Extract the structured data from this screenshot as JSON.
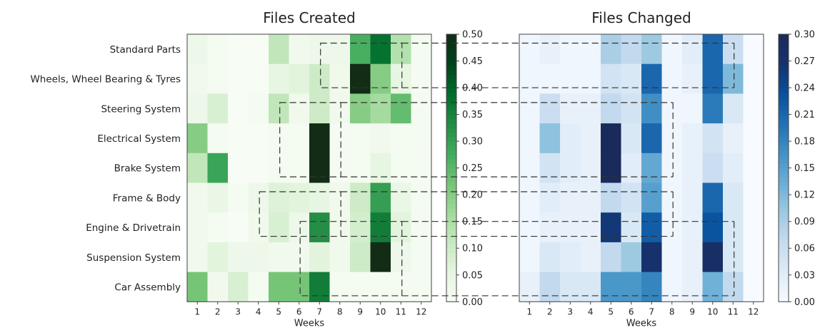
{
  "chart_data": {
    "type": "heatmap",
    "xlabel": "Weeks",
    "x": [
      "1",
      "2",
      "3",
      "4",
      "5",
      "6",
      "7",
      "8",
      "9",
      "10",
      "11",
      "12"
    ],
    "rows": [
      "Standard Parts",
      "Wheels, Wheel Bearing & Tyres",
      "Steering System",
      "Electrical System",
      "Brake System",
      "Frame & Body",
      "Engine & Drivetrain",
      "Suspension System",
      "Car Assembly"
    ],
    "panels": [
      {
        "title": "Files Created",
        "colormap": "Greens",
        "vmin": 0,
        "vmax": 0.5,
        "colorbar_ticks": [
          "0.00",
          "0.05",
          "0.10",
          "0.15",
          "0.20",
          "0.25",
          "0.30",
          "0.35",
          "0.40",
          "0.45",
          "0.50"
        ],
        "values": [
          [
            0.03,
            0.01,
            0.0,
            0.0,
            0.12,
            0.02,
            0.03,
            0.03,
            0.27,
            0.38,
            0.14,
            0.01
          ],
          [
            0.02,
            0.01,
            0.0,
            0.0,
            0.05,
            0.06,
            0.1,
            0.02,
            0.5,
            0.2,
            0.05,
            0.01
          ],
          [
            0.03,
            0.08,
            0.0,
            0.01,
            0.12,
            0.02,
            0.1,
            0.02,
            0.2,
            0.16,
            0.24,
            0.01
          ],
          [
            0.2,
            0.01,
            0.0,
            0.0,
            0.01,
            0.01,
            0.5,
            0.01,
            0.01,
            0.02,
            0.01,
            0.01
          ],
          [
            0.12,
            0.29,
            0.0,
            0.0,
            0.01,
            0.01,
            0.5,
            0.01,
            0.01,
            0.05,
            0.01,
            0.01
          ],
          [
            0.02,
            0.04,
            0.01,
            0.03,
            0.07,
            0.06,
            0.05,
            0.02,
            0.1,
            0.3,
            0.04,
            0.01
          ],
          [
            0.02,
            0.01,
            0.0,
            0.02,
            0.08,
            0.03,
            0.33,
            0.02,
            0.09,
            0.36,
            0.06,
            0.01
          ],
          [
            0.02,
            0.06,
            0.03,
            0.03,
            0.02,
            0.02,
            0.06,
            0.02,
            0.1,
            0.5,
            0.03,
            0.01
          ],
          [
            0.22,
            0.02,
            0.08,
            0.01,
            0.22,
            0.22,
            0.36,
            0.01,
            0.01,
            0.01,
            0.01,
            0.01
          ]
        ]
      },
      {
        "title": "Files Changed",
        "colormap": "Blues",
        "vmin": 0,
        "vmax": 0.3,
        "colorbar_ticks": [
          "0.00",
          "0.03",
          "0.06",
          "0.09",
          "0.12",
          "0.15",
          "0.18",
          "0.21",
          "0.24",
          "0.27",
          "0.30"
        ],
        "values": [
          [
            0.01,
            0.02,
            0.01,
            0.01,
            0.09,
            0.07,
            0.1,
            0.01,
            0.03,
            0.21,
            0.06,
            0.0
          ],
          [
            0.01,
            0.01,
            0.01,
            0.01,
            0.05,
            0.04,
            0.21,
            0.01,
            0.02,
            0.21,
            0.12,
            0.0
          ],
          [
            0.01,
            0.06,
            0.02,
            0.02,
            0.07,
            0.05,
            0.17,
            0.01,
            0.01,
            0.19,
            0.04,
            0.0
          ],
          [
            0.01,
            0.11,
            0.03,
            0.02,
            0.3,
            0.04,
            0.21,
            0.01,
            0.02,
            0.05,
            0.02,
            0.0
          ],
          [
            0.01,
            0.05,
            0.03,
            0.02,
            0.3,
            0.03,
            0.14,
            0.01,
            0.02,
            0.06,
            0.03,
            0.0
          ],
          [
            0.01,
            0.03,
            0.02,
            0.02,
            0.07,
            0.05,
            0.15,
            0.01,
            0.02,
            0.21,
            0.04,
            0.0
          ],
          [
            0.01,
            0.02,
            0.02,
            0.02,
            0.26,
            0.04,
            0.22,
            0.01,
            0.02,
            0.23,
            0.04,
            0.0
          ],
          [
            0.01,
            0.04,
            0.03,
            0.02,
            0.07,
            0.1,
            0.27,
            0.01,
            0.02,
            0.28,
            0.04,
            0.0
          ],
          [
            0.02,
            0.07,
            0.04,
            0.04,
            0.16,
            0.16,
            0.18,
            0.01,
            0.02,
            0.13,
            0.07,
            0.0
          ]
        ]
      }
    ],
    "highlight_boxes": [
      {
        "rows": [
          1,
          2
        ],
        "weeks_created": [
          7,
          11
        ],
        "weeks_changed": [
          1,
          11
        ]
      },
      {
        "rows": [
          3,
          5
        ],
        "weeks_created": [
          5,
          8
        ],
        "weeks_changed": [
          5,
          8
        ]
      },
      {
        "rows": [
          6,
          7
        ],
        "weeks_created": [
          4,
          8
        ],
        "weeks_changed": [
          5,
          8
        ]
      },
      {
        "rows": [
          7,
          9
        ],
        "weeks_created": [
          6,
          11
        ],
        "weeks_changed": [
          1,
          11
        ]
      }
    ]
  }
}
